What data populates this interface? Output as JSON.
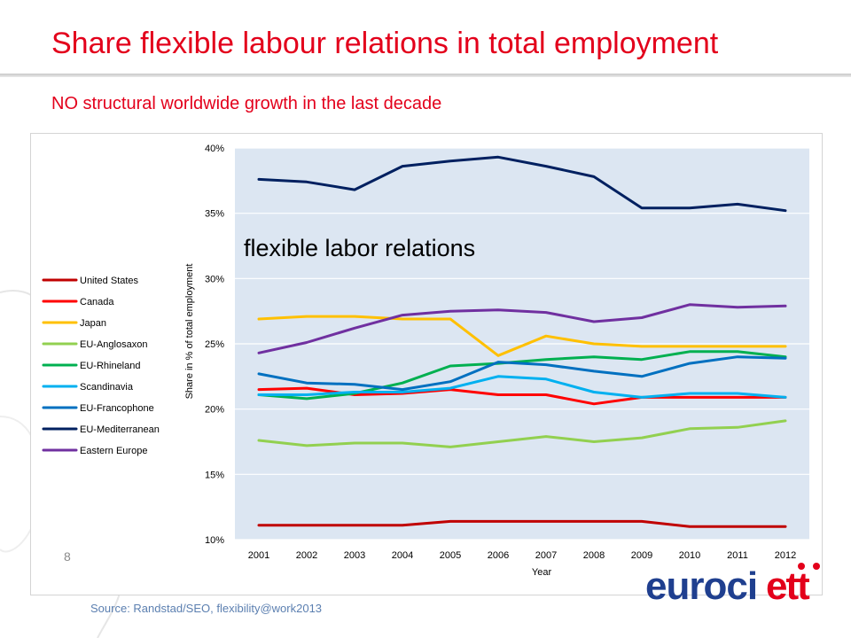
{
  "slide": {
    "title": "Share flexible labour relations in total employment",
    "subtitle": "NO structural worldwide growth in the last decade",
    "page_number": "8",
    "source": "Source: Randstad/SEO, flexibility@work2013",
    "logo_text": "eurociett"
  },
  "colors": {
    "title": "#e3001b",
    "plot_background": "#dce6f2",
    "gridline": "#ffffff"
  },
  "chart_data": {
    "type": "line",
    "title": "",
    "annotation": "flexible labor relations",
    "xlabel": "Year",
    "ylabel": "Share in % of total employment",
    "x": [
      "2001",
      "2002",
      "2003",
      "2004",
      "2005",
      "2006",
      "2007",
      "2008",
      "2009",
      "2010",
      "2011",
      "2012"
    ],
    "ylim": [
      10,
      40
    ],
    "yticks": [
      10,
      15,
      20,
      25,
      30,
      35,
      40
    ],
    "ytick_labels": [
      "10%",
      "15%",
      "20%",
      "25%",
      "30%",
      "35%",
      "40%"
    ],
    "grid": true,
    "legend_position": "left",
    "series": [
      {
        "name": "United States",
        "color": "#c00000",
        "values": [
          11.1,
          11.1,
          11.1,
          11.1,
          11.4,
          11.4,
          11.4,
          11.4,
          11.4,
          11.0,
          11.0,
          11.0
        ]
      },
      {
        "name": "Canada",
        "color": "#ff0000",
        "values": [
          21.5,
          21.6,
          21.1,
          21.2,
          21.5,
          21.1,
          21.1,
          20.4,
          20.9,
          20.9,
          20.9,
          20.9
        ]
      },
      {
        "name": "Japan",
        "color": "#ffc000",
        "values": [
          26.9,
          27.1,
          27.1,
          26.9,
          26.9,
          24.1,
          25.6,
          25.0,
          24.8,
          24.8,
          24.8,
          24.8
        ]
      },
      {
        "name": "EU-Anglosaxon",
        "color": "#92d050",
        "values": [
          17.6,
          17.2,
          17.4,
          17.4,
          17.1,
          17.5,
          17.9,
          17.5,
          17.8,
          18.5,
          18.6,
          19.1
        ]
      },
      {
        "name": "EU-Rhineland",
        "color": "#00b050",
        "values": [
          21.1,
          20.8,
          21.2,
          22.0,
          23.3,
          23.5,
          23.8,
          24.0,
          23.8,
          24.4,
          24.4,
          24.0
        ]
      },
      {
        "name": "Scandinavia",
        "color": "#00b0f0",
        "values": [
          21.1,
          21.1,
          21.3,
          21.3,
          21.6,
          22.5,
          22.3,
          21.3,
          20.9,
          21.2,
          21.2,
          20.9
        ]
      },
      {
        "name": "EU-Francophone",
        "color": "#0070c0",
        "values": [
          22.7,
          22.0,
          21.9,
          21.5,
          22.1,
          23.6,
          23.4,
          22.9,
          22.5,
          23.5,
          24.0,
          23.9
        ]
      },
      {
        "name": "EU-Mediterranean",
        "color": "#002060",
        "values": [
          37.6,
          37.4,
          36.8,
          38.6,
          39.0,
          39.3,
          38.6,
          37.8,
          35.4,
          35.4,
          35.7,
          35.2
        ]
      },
      {
        "name": "Eastern Europe",
        "color": "#7030a0",
        "values": [
          24.3,
          25.1,
          26.2,
          27.2,
          27.5,
          27.6,
          27.4,
          26.7,
          27.0,
          28.0,
          27.8,
          27.9
        ]
      }
    ]
  }
}
